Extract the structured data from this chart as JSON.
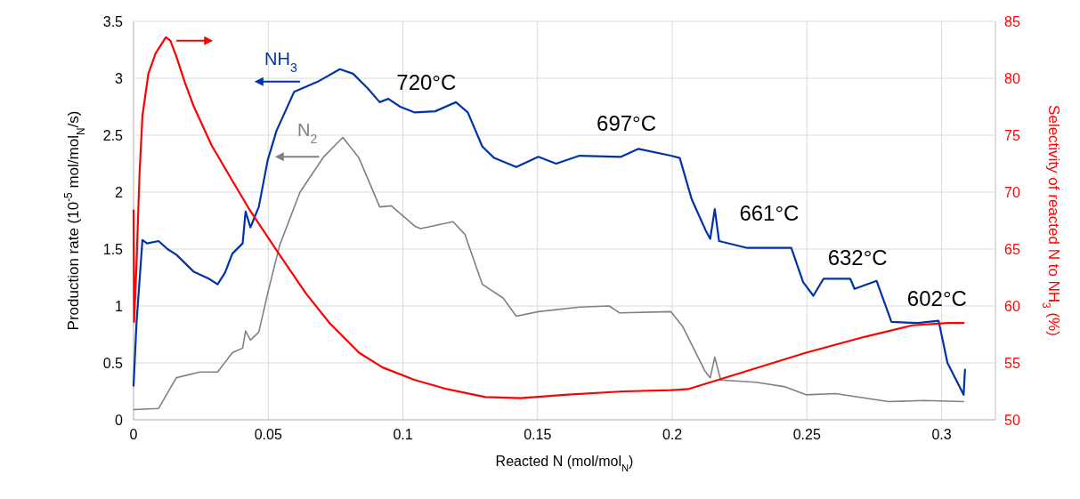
{
  "chart_data": {
    "type": "line",
    "xlabel": "Reacted N (mol/mol$_{N}$)",
    "ylabel": "Production rate (10$^{-5}$ mol/mol$_{N}$/s)",
    "y2label": "Selectivity of reacted N to NH$_{3}$ (%)",
    "xlim": [
      0,
      0.32
    ],
    "xticks": [
      0,
      0.05,
      0.1,
      0.15,
      0.2,
      0.25,
      0.3
    ],
    "ylim": [
      0,
      3.5
    ],
    "yticks": [
      0,
      0.5,
      1,
      1.5,
      2,
      2.5,
      3,
      3.5
    ],
    "y2lim": [
      50,
      85
    ],
    "y2ticks": [
      50,
      55,
      60,
      65,
      70,
      75,
      80,
      85
    ],
    "grid": true,
    "line_style": "solid",
    "series": [
      {
        "name": "NH$_{3}$",
        "color": "#0033aa",
        "x": [
          0,
          0.0011,
          0.0033,
          0.005,
          0.0093,
          0.0126,
          0.0159,
          0.0224,
          0.0279,
          0.0312,
          0.0339,
          0.0367,
          0.0405,
          0.0416,
          0.0434,
          0.0465,
          0.0498,
          0.0531,
          0.0596,
          0.0684,
          0.0766,
          0.0815,
          0.087,
          0.0914,
          0.0946,
          0.099,
          0.1044,
          0.112,
          0.1197,
          0.1241,
          0.1295,
          0.1339,
          0.1421,
          0.1503,
          0.1569,
          0.1656,
          0.181,
          0.1875,
          0.1995,
          0.2028,
          0.2072,
          0.2125,
          0.2141,
          0.2158,
          0.2174,
          0.2278,
          0.2442,
          0.2486,
          0.2524,
          0.2562,
          0.2661,
          0.2677,
          0.2759,
          0.2814,
          0.2912,
          0.2989,
          0.3022,
          0.3082,
          0.3087
        ],
        "values": [
          0.3,
          0.85,
          1.58,
          1.55,
          1.57,
          1.5,
          1.45,
          1.3,
          1.24,
          1.19,
          1.29,
          1.46,
          1.55,
          1.83,
          1.69,
          1.87,
          2.28,
          2.54,
          2.88,
          2.97,
          3.08,
          3.04,
          2.91,
          2.79,
          2.82,
          2.75,
          2.7,
          2.71,
          2.79,
          2.7,
          2.4,
          2.3,
          2.22,
          2.31,
          2.25,
          2.32,
          2.31,
          2.38,
          2.32,
          2.3,
          1.94,
          1.66,
          1.59,
          1.85,
          1.57,
          1.51,
          1.51,
          1.21,
          1.09,
          1.24,
          1.24,
          1.15,
          1.22,
          0.86,
          0.85,
          0.87,
          0.5,
          0.22,
          0.44
        ]
      },
      {
        "name": "N$_{2}$",
        "color": "#808080",
        "x": [
          0,
          0.0093,
          0.0159,
          0.0246,
          0.0312,
          0.0367,
          0.0405,
          0.0416,
          0.0434,
          0.0465,
          0.0498,
          0.0542,
          0.0618,
          0.0706,
          0.0777,
          0.0837,
          0.0914,
          0.0957,
          0.1045,
          0.1066,
          0.1186,
          0.123,
          0.1295,
          0.1372,
          0.1421,
          0.1503,
          0.1656,
          0.1766,
          0.1804,
          0.1995,
          0.2039,
          0.2121,
          0.2141,
          0.2158,
          0.218,
          0.2311,
          0.242,
          0.2497,
          0.2606,
          0.2803,
          0.2934,
          0.3082
        ],
        "values": [
          0.09,
          0.1,
          0.37,
          0.42,
          0.42,
          0.59,
          0.63,
          0.78,
          0.7,
          0.77,
          1.11,
          1.53,
          2.0,
          2.31,
          2.48,
          2.3,
          1.87,
          1.88,
          1.7,
          1.68,
          1.74,
          1.63,
          1.19,
          1.07,
          0.91,
          0.95,
          0.99,
          1.0,
          0.94,
          0.95,
          0.82,
          0.43,
          0.37,
          0.55,
          0.35,
          0.33,
          0.29,
          0.22,
          0.23,
          0.16,
          0.17,
          0.16
        ]
      },
      {
        "color": "#ff0000",
        "axis": "y2",
        "x": [
          0,
          0.0002,
          0.0011,
          0.0022,
          0.0033,
          0.0055,
          0.0082,
          0.012,
          0.0137,
          0.0159,
          0.0191,
          0.0224,
          0.029,
          0.0367,
          0.0432,
          0.0542,
          0.064,
          0.0728,
          0.0837,
          0.0925,
          0.1045,
          0.1164,
          0.1306,
          0.1437,
          0.16,
          0.1819,
          0.1994,
          0.2059,
          0.2278,
          0.2497,
          0.2716,
          0.2891,
          0.3022,
          0.3082
        ],
        "values": [
          68.4,
          58.6,
          63.7,
          71.5,
          76.7,
          80.4,
          82.2,
          83.6,
          83.3,
          81.9,
          79.6,
          77.5,
          74.1,
          71.0,
          68.4,
          64.5,
          61.1,
          58.5,
          55.9,
          54.6,
          53.5,
          52.7,
          52.0,
          51.9,
          52.2,
          52.5,
          52.6,
          52.7,
          54.3,
          55.9,
          57.3,
          58.3,
          58.5,
          58.5
        ]
      }
    ],
    "annotations": [
      "720°C",
      "697°C",
      "661°C",
      "632°C",
      "602°C"
    ]
  }
}
